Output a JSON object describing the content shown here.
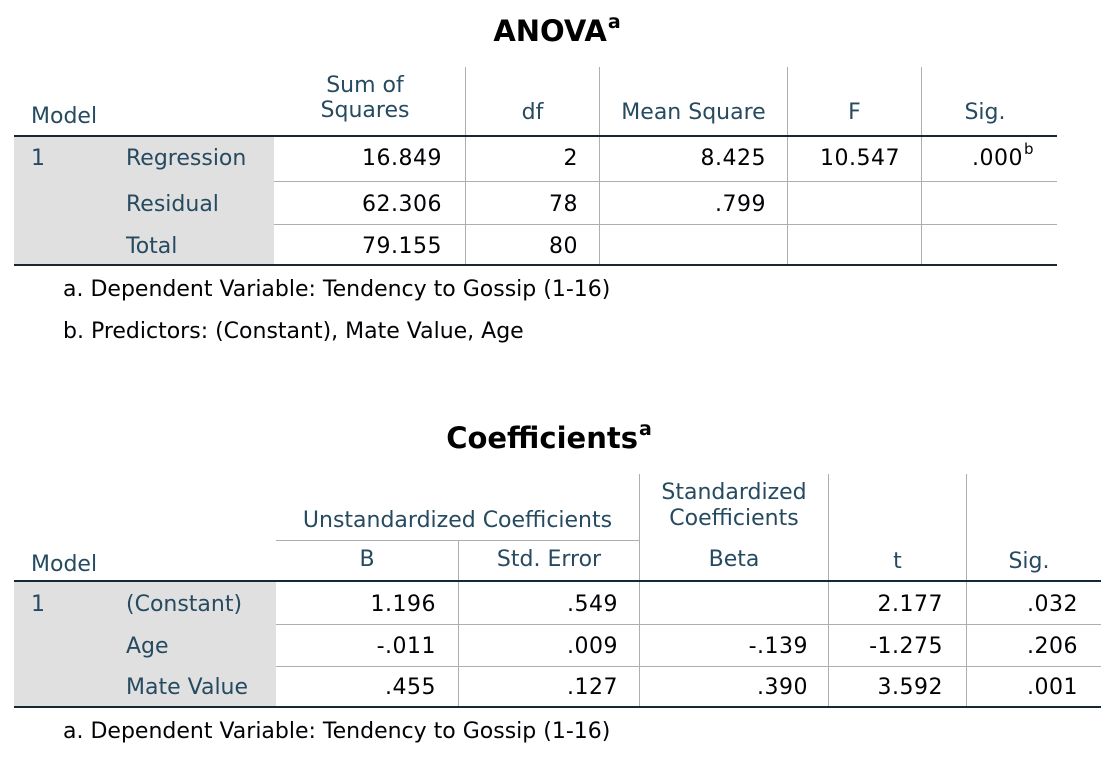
{
  "anova": {
    "title": "ANOVA",
    "title_sup": "a",
    "headers": {
      "model": "Model",
      "sum_of_squares_line1": "Sum of",
      "sum_of_squares_line2": "Squares",
      "df": "df",
      "mean_square": "Mean Square",
      "f": "F",
      "sig": "Sig."
    },
    "model_number": "1",
    "rows": [
      {
        "label": "Regression",
        "ss": "16.849",
        "df": "2",
        "ms": "8.425",
        "f": "10.547",
        "sig": ".000",
        "sig_sup": "b"
      },
      {
        "label": "Residual",
        "ss": "62.306",
        "df": "78",
        "ms": ".799",
        "f": "",
        "sig": ""
      },
      {
        "label": "Total",
        "ss": "79.155",
        "df": "80",
        "ms": "",
        "f": "",
        "sig": ""
      }
    ],
    "footnotes": [
      "a. Dependent Variable: Tendency to Gossip (1-16)",
      "b. Predictors: (Constant), Mate Value, Age"
    ]
  },
  "coefficients": {
    "title": "Coefficients",
    "title_sup": "a",
    "headers": {
      "model": "Model",
      "unstandardized": "Unstandardized Coefficients",
      "standardized_line1": "Standardized",
      "standardized_line2": "Coefficients",
      "b": "B",
      "std_error": "Std. Error",
      "beta": "Beta",
      "t": "t",
      "sig": "Sig."
    },
    "model_number": "1",
    "rows": [
      {
        "label": "(Constant)",
        "b": "1.196",
        "se": ".549",
        "beta": "",
        "t": "2.177",
        "sig": ".032"
      },
      {
        "label": "Age",
        "b": "-.011",
        "se": ".009",
        "beta": "-.139",
        "t": "-1.275",
        "sig": ".206"
      },
      {
        "label": "Mate Value",
        "b": ".455",
        "se": ".127",
        "beta": ".390",
        "t": "3.592",
        "sig": ".001"
      }
    ],
    "footnotes": [
      "a. Dependent Variable: Tendency to Gossip (1-16)"
    ]
  }
}
